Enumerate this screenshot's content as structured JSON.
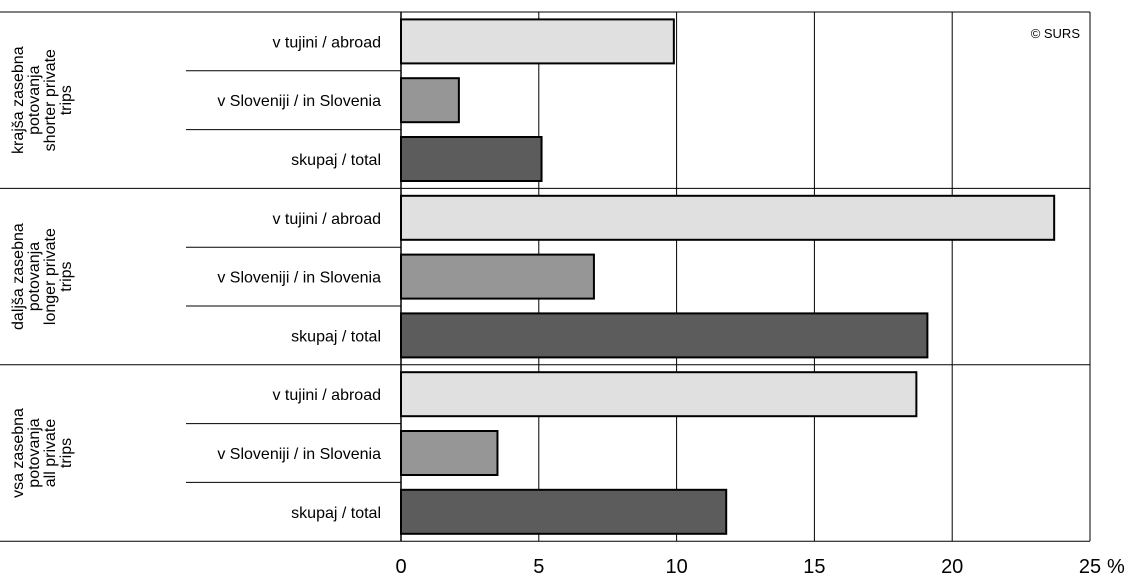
{
  "chart_data": {
    "type": "bar",
    "orientation": "horizontal",
    "copyright": "© SURS",
    "unit": "%",
    "xlim": [
      0,
      25
    ],
    "xticks": [
      "0",
      "5",
      "10",
      "15",
      "20",
      "25"
    ],
    "grid": true,
    "colors": {
      "abroad": "#e0e0e0",
      "slovenia": "#969696",
      "total": "#5c5c5c",
      "stroke": "#000000"
    },
    "groups": [
      {
        "label_lines": [
          "krajša zasebna",
          "potovanja",
          "shorter private",
          "trips"
        ],
        "bars": [
          {
            "label": "v tujini / abroad",
            "value": 9.9,
            "kind": "abroad"
          },
          {
            "label": "v Sloveniji / in Slovenia",
            "value": 2.1,
            "kind": "slovenia"
          },
          {
            "label": "skupaj / total",
            "value": 5.1,
            "kind": "total"
          }
        ]
      },
      {
        "label_lines": [
          "daljša zasebna",
          "potovanja",
          "longer private",
          "trips"
        ],
        "bars": [
          {
            "label": "v tujini / abroad",
            "value": 23.7,
            "kind": "abroad"
          },
          {
            "label": "v Sloveniji / in Slovenia",
            "value": 7.0,
            "kind": "slovenia"
          },
          {
            "label": "skupaj / total",
            "value": 19.1,
            "kind": "total"
          }
        ]
      },
      {
        "label_lines": [
          "vsa zasebna",
          "potovanja",
          "all private",
          "trips"
        ],
        "bars": [
          {
            "label": "v tujini / abroad",
            "value": 18.7,
            "kind": "abroad"
          },
          {
            "label": "v Sloveniji / in Slovenia",
            "value": 3.5,
            "kind": "slovenia"
          },
          {
            "label": "skupaj / total",
            "value": 11.8,
            "kind": "total"
          }
        ]
      }
    ]
  }
}
